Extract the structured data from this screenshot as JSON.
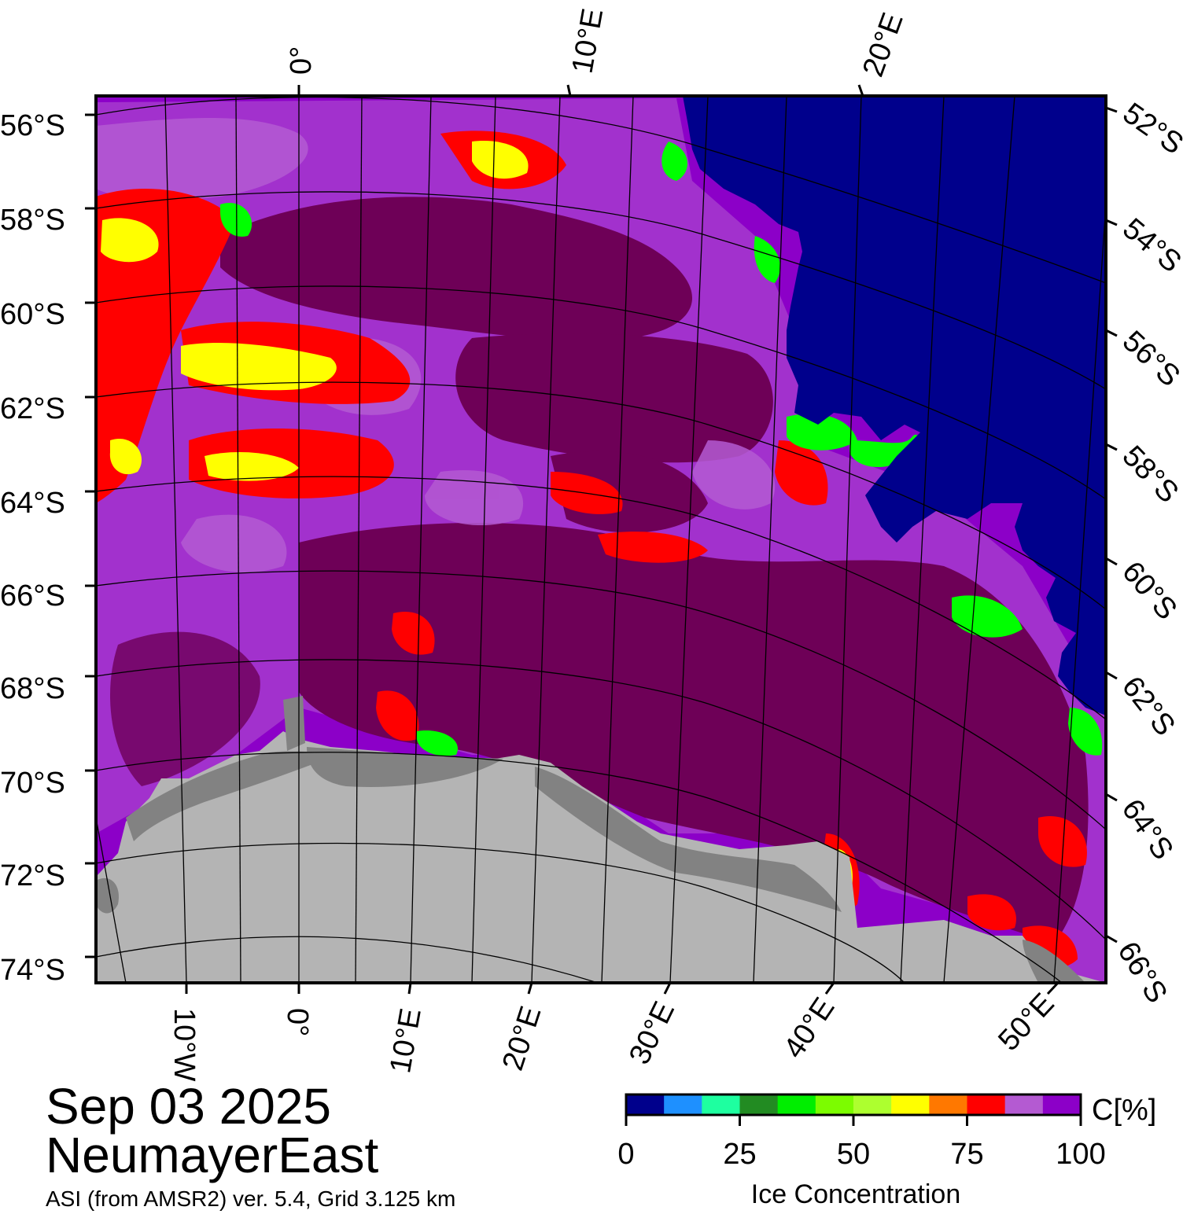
{
  "header": {
    "date": "Sep 03 2025",
    "region": "NeumayerEast",
    "source": "ASI (from AMSR2) ver. 5.4,  Grid 3.125 km"
  },
  "map": {
    "lon_labels_top": [
      "0°",
      "10°E",
      "20°E"
    ],
    "lat_labels_left": [
      "56°S",
      "58°S",
      "60°S",
      "62°S",
      "64°S",
      "66°S",
      "68°S",
      "70°S",
      "72°S",
      "74°S"
    ],
    "lat_labels_right": [
      "52°S",
      "54°S",
      "56°S",
      "58°S",
      "60°S",
      "62°S",
      "64°S",
      "66°S"
    ],
    "lon_labels_bottom": [
      "10°W",
      "0°",
      "10°E",
      "20°E",
      "30°E",
      "40°E",
      "50°E"
    ],
    "colors": {
      "open_water": "#00008c",
      "ice_high": "#6e0057",
      "ice_mid": "#8c00c8",
      "ice_lower": "#b45ad2",
      "red": "#ff0000",
      "orange": "#ff7800",
      "yellow": "#ffff00",
      "green": "#00ff00",
      "land_ice": "#b4b4b4",
      "ice_shelf": "#828282"
    }
  },
  "colorbar": {
    "title": "Ice Concentration",
    "unit": "C[%]",
    "ticks": [
      "0",
      "25",
      "50",
      "75",
      "100"
    ],
    "colors": [
      "#00008c",
      "#1e90ff",
      "#1effa0",
      "#228b22",
      "#00ee00",
      "#7cfc00",
      "#adff2f",
      "#ffff00",
      "#ff7800",
      "#ff0000",
      "#b45ad2",
      "#8c00c8"
    ]
  }
}
